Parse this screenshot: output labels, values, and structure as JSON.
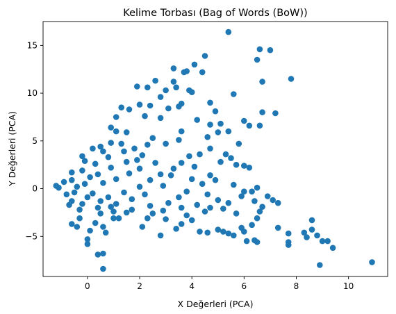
{
  "chart_data": {
    "type": "scatter",
    "title": "Kelime Torbası (Bag of Words (BoW))",
    "xlabel": "X Değerleri (PCA)",
    "ylabel": "Y Değerleri (PCA)",
    "xlim": [
      -1.7,
      11.5
    ],
    "ylim": [
      -9.2,
      17.5
    ],
    "x_ticks": [
      0,
      2,
      4,
      6,
      8,
      10
    ],
    "y_ticks": [
      -5,
      0,
      5,
      10,
      15
    ],
    "grid": false,
    "legend": "none",
    "marker_color": "#1f77b4",
    "series": [
      {
        "points": [
          [
            5.4,
            16.4
          ],
          [
            6.6,
            14.6
          ],
          [
            7.0,
            14.5
          ],
          [
            6.5,
            13.5
          ],
          [
            4.5,
            13.9
          ],
          [
            4.1,
            13.0
          ],
          [
            4.4,
            12.2
          ],
          [
            3.8,
            12.3
          ],
          [
            3.3,
            12.6
          ],
          [
            3.7,
            12.2
          ],
          [
            6.7,
            11.2
          ],
          [
            7.8,
            11.5
          ],
          [
            2.6,
            11.3
          ],
          [
            3.3,
            11.2
          ],
          [
            1.9,
            10.7
          ],
          [
            2.3,
            10.6
          ],
          [
            3.4,
            10.6
          ],
          [
            3.0,
            10.3
          ],
          [
            3.9,
            10.3
          ],
          [
            4.0,
            10.1
          ],
          [
            5.6,
            9.9
          ],
          [
            2.8,
            9.6
          ],
          [
            3.6,
            8.9
          ],
          [
            4.7,
            9.0
          ],
          [
            1.3,
            8.5
          ],
          [
            1.6,
            8.3
          ],
          [
            2.0,
            8.8
          ],
          [
            2.4,
            8.7
          ],
          [
            3.1,
            8.4
          ],
          [
            3.5,
            8.6
          ],
          [
            4.9,
            8.1
          ],
          [
            6.7,
            8.0
          ],
          [
            7.2,
            7.9
          ],
          [
            6.0,
            7.1
          ],
          [
            6.6,
            6.6
          ],
          [
            6.2,
            6.6
          ],
          [
            4.2,
            7.2
          ],
          [
            4.7,
            6.7
          ],
          [
            5.1,
            6.8
          ],
          [
            5.4,
            6.0
          ],
          [
            3.6,
            6.0
          ],
          [
            2.8,
            7.4
          ],
          [
            2.2,
            7.6
          ],
          [
            1.1,
            7.5
          ],
          [
            0.9,
            6.4
          ],
          [
            5.0,
            5.9
          ],
          [
            4.6,
            5.4
          ],
          [
            5.8,
            4.7
          ],
          [
            4.7,
            4.2
          ],
          [
            5.3,
            3.6
          ],
          [
            5.7,
            2.5
          ],
          [
            6.0,
            2.4
          ],
          [
            6.2,
            2.2
          ],
          [
            5.5,
            3.2
          ],
          [
            5.1,
            2.8
          ],
          [
            4.9,
            0.9
          ],
          [
            5.6,
            0.4
          ],
          [
            6.0,
            -0.3
          ],
          [
            6.3,
            -0.3
          ],
          [
            6.4,
            -1.3
          ],
          [
            6.7,
            -1.9
          ],
          [
            6.6,
            -2.4
          ],
          [
            6.5,
            -3.1
          ],
          [
            6.3,
            -3.8
          ],
          [
            5.9,
            -4.1
          ],
          [
            5.6,
            -4.9
          ],
          [
            5.2,
            -4.5
          ],
          [
            5.0,
            -4.3
          ],
          [
            4.6,
            -4.6
          ],
          [
            4.3,
            -4.5
          ],
          [
            3.6,
            -3.7
          ],
          [
            3.4,
            -4.2
          ],
          [
            2.8,
            -4.9
          ],
          [
            2.1,
            -4.0
          ],
          [
            6.0,
            -4.5
          ],
          [
            6.1,
            -5.5
          ],
          [
            6.5,
            -5.6
          ],
          [
            6.4,
            -5.4
          ],
          [
            5.4,
            -4.7
          ],
          [
            7.3,
            -4.1
          ],
          [
            7.7,
            -4.7
          ],
          [
            7.7,
            -5.6
          ],
          [
            7.7,
            -5.9
          ],
          [
            8.3,
            -4.6
          ],
          [
            8.4,
            -5.1
          ],
          [
            8.6,
            -4.3
          ],
          [
            8.6,
            -3.3
          ],
          [
            8.8,
            -4.9
          ],
          [
            9.0,
            -5.5
          ],
          [
            9.2,
            -5.5
          ],
          [
            9.4,
            -6.2
          ],
          [
            8.9,
            -8.0
          ],
          [
            10.9,
            -7.7
          ],
          [
            0.6,
            -8.4
          ],
          [
            0.6,
            -6.8
          ],
          [
            0.4,
            -6.9
          ],
          [
            0.0,
            -5.8
          ],
          [
            0.0,
            -5.3
          ],
          [
            0.1,
            -4.4
          ],
          [
            -0.4,
            -4.0
          ],
          [
            -0.6,
            -3.7
          ],
          [
            -0.3,
            -3.1
          ],
          [
            0.3,
            -3.6
          ],
          [
            0.7,
            -4.6
          ],
          [
            0.6,
            -4.0
          ],
          [
            1.2,
            -3.1
          ],
          [
            1.0,
            -3.1
          ],
          [
            2.3,
            -3.1
          ],
          [
            3.0,
            -3.2
          ],
          [
            3.8,
            -2.8
          ],
          [
            4.0,
            -3.3
          ],
          [
            4.5,
            -2.4
          ],
          [
            4.7,
            -2.0
          ],
          [
            5.2,
            -2.1
          ],
          [
            5.7,
            -2.6
          ],
          [
            7.1,
            -1.2
          ],
          [
            7.3,
            -1.5
          ],
          [
            6.9,
            -0.8
          ],
          [
            6.5,
            0.1
          ],
          [
            4.4,
            0.5
          ],
          [
            4.7,
            1.4
          ],
          [
            4.1,
            2.3
          ],
          [
            3.6,
            2.7
          ],
          [
            3.9,
            3.4
          ],
          [
            4.3,
            3.6
          ],
          [
            3.0,
            4.7
          ],
          [
            3.5,
            5.1
          ],
          [
            2.5,
            5.3
          ],
          [
            1.5,
            5.9
          ],
          [
            1.1,
            6.0
          ],
          [
            0.2,
            4.2
          ],
          [
            0.5,
            4.4
          ],
          [
            -0.2,
            3.4
          ],
          [
            -0.1,
            2.9
          ],
          [
            -0.6,
            1.7
          ],
          [
            -0.6,
            0.9
          ],
          [
            -0.9,
            0.7
          ],
          [
            -1.2,
            0.3
          ],
          [
            -1.1,
            0.1
          ],
          [
            -0.8,
            -0.6
          ],
          [
            -0.6,
            -1.3
          ],
          [
            -0.7,
            -1.7
          ],
          [
            -0.3,
            -2.2
          ],
          [
            0.5,
            -2.6
          ],
          [
            0.9,
            -1.9
          ],
          [
            1.7,
            -2.2
          ],
          [
            2.4,
            -1.8
          ],
          [
            3.1,
            -1.5
          ],
          [
            3.5,
            -0.9
          ],
          [
            3.8,
            -0.3
          ],
          [
            2.9,
            0.3
          ],
          [
            3.2,
            1.4
          ],
          [
            2.6,
            2.7
          ],
          [
            2.1,
            3.5
          ],
          [
            1.4,
            3.9
          ],
          [
            0.8,
            3.3
          ],
          [
            0.3,
            2.6
          ],
          [
            -0.2,
            1.9
          ],
          [
            0.1,
            1.2
          ],
          [
            0.6,
            0.6
          ],
          [
            1.1,
            1.0
          ],
          [
            1.6,
            1.6
          ],
          [
            2.0,
            2.1
          ],
          [
            1.5,
            2.8
          ],
          [
            0.9,
            2.2
          ],
          [
            0.4,
            1.5
          ],
          [
            -0.1,
            0.5
          ],
          [
            -0.4,
            0.2
          ],
          [
            0.2,
            -0.5
          ],
          [
            0.8,
            -0.9
          ],
          [
            1.4,
            -0.4
          ],
          [
            2.0,
            0.2
          ],
          [
            2.4,
            0.9
          ],
          [
            2.8,
            1.5
          ],
          [
            2.2,
            -0.6
          ],
          [
            1.7,
            -1.1
          ],
          [
            1.1,
            -1.6
          ],
          [
            0.5,
            -1.3
          ],
          [
            0.0,
            -0.9
          ],
          [
            -0.5,
            -0.4
          ],
          [
            1.3,
            4.7
          ],
          [
            1.8,
            4.2
          ],
          [
            2.3,
            4.6
          ],
          [
            0.9,
            4.8
          ],
          [
            0.6,
            3.9
          ],
          [
            1.9,
            3.0
          ],
          [
            3.3,
            2.1
          ],
          [
            4.0,
            1.0
          ],
          [
            4.6,
            -0.6
          ],
          [
            5.0,
            -1.2
          ],
          [
            5.4,
            -1.5
          ],
          [
            5.9,
            -0.8
          ],
          [
            4.2,
            -1.7
          ],
          [
            3.6,
            -2.0
          ],
          [
            2.9,
            -2.3
          ],
          [
            2.5,
            -2.6
          ],
          [
            1.5,
            -2.5
          ],
          [
            1.0,
            -2.4
          ],
          [
            0.4,
            -2.0
          ],
          [
            -0.2,
            -1.6
          ]
        ]
      }
    ]
  }
}
